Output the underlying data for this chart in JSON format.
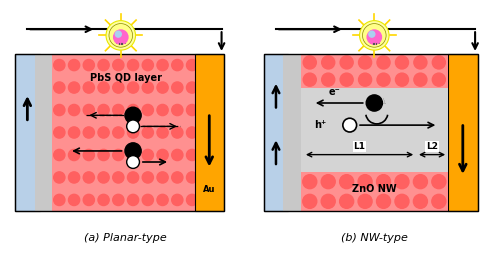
{
  "fig_width": 5.0,
  "fig_height": 2.65,
  "dpi": 100,
  "bg_color": "#ffffff",
  "salmon_color": "#FF9090",
  "salmon_dot_color": "#FF6060",
  "gold_color": "#FFA500",
  "blue_gray_color": "#B8D0E8",
  "gray_color": "#C8C8C8",
  "nw_gray_color": "#D4D4D4",
  "label_a": "(a) Planar-type",
  "label_b": "(b) NW-type",
  "pbs_label": "PbS QD layer",
  "au_label": "Au",
  "zno_label": "ZnO NW",
  "e_label": "e⁻",
  "h_label": "h⁺",
  "L1_label": "L1",
  "L2_label": "L2"
}
